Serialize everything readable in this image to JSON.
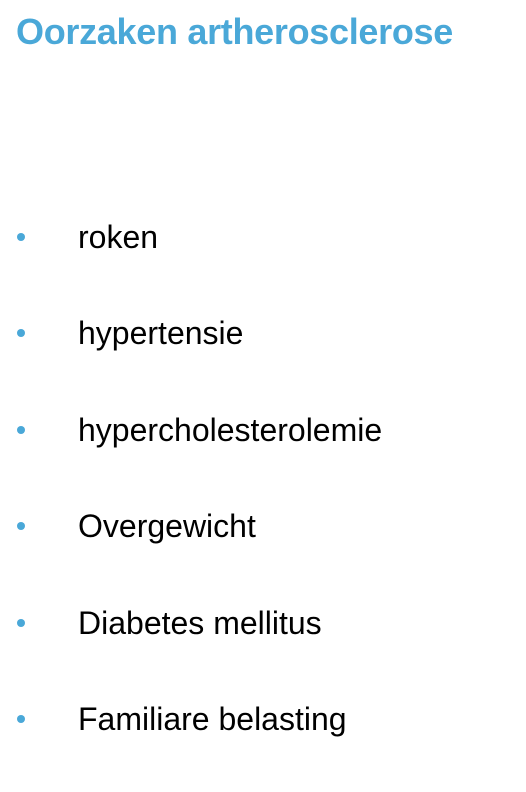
{
  "slide": {
    "title": "Oorzaken artherosclerose",
    "accent_color": "#4aa8d8",
    "bullets": [
      {
        "text": "roken"
      },
      {
        "text": "hypertensie"
      },
      {
        "text": "hypercholesterolemie"
      },
      {
        "text": "Overgewicht"
      },
      {
        "text": "Diabetes mellitus"
      },
      {
        "text": "Familiare belasting"
      }
    ]
  }
}
